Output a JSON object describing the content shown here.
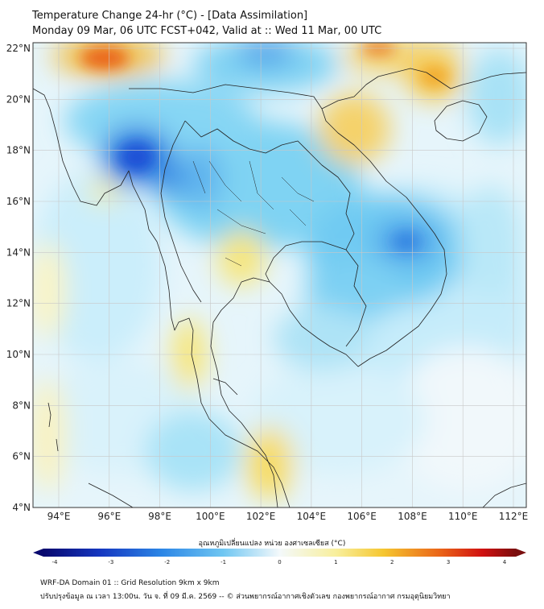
{
  "header": {
    "title_line1": "Temperature Change 24-hr (°C) - [Data Assimilation]",
    "title_line2": "Monday 09 Mar, 06 UTC FCST+042, Valid at :: Wed 11 Mar, 00 UTC"
  },
  "map": {
    "lat_ticks": [
      "22°N",
      "20°N",
      "18°N",
      "16°N",
      "14°N",
      "12°N",
      "10°N",
      "8°N",
      "6°N",
      "4°N"
    ],
    "lon_ticks": [
      "94°E",
      "96°E",
      "98°E",
      "100°E",
      "102°E",
      "104°E",
      "106°E",
      "108°E",
      "110°E",
      "112°E"
    ],
    "field": "24-hr temperature change",
    "cells_note": "",
    "colors": {
      "neg4": "#08086e",
      "neg3": "#1a4fd6",
      "neg2": "#4aa5f0",
      "neg1": "#a8ddf5",
      "zero": "#f4f9fb",
      "pos1": "#f8f1a8",
      "pos2": "#f5c630",
      "pos3": "#ea6418",
      "pos4": "#7a0e0e",
      "coast": "#222222"
    }
  },
  "colorbar": {
    "title": "อุณหภูมิเปลี่ยนแปลง หน่วย องศาเซลเซียส (°C)",
    "ticks": [
      "-4",
      "-3",
      "-2",
      "-1",
      "0",
      "1",
      "2",
      "3",
      "4"
    ],
    "min": -4,
    "max": 4
  },
  "footer": {
    "line1": "WRF-DA Domain 01 :: Grid Resolution 9km x 9km",
    "line2": "ปรับปรุงข้อมูล ณ เวลา 13:00น. วัน จ. ที่ 09 มี.ค. 2569 -- © ส่วนพยากรณ์อากาศเชิงตัวเลข กองพยากรณ์อากาศ กรมอุตุนิยมวิทยา"
  }
}
